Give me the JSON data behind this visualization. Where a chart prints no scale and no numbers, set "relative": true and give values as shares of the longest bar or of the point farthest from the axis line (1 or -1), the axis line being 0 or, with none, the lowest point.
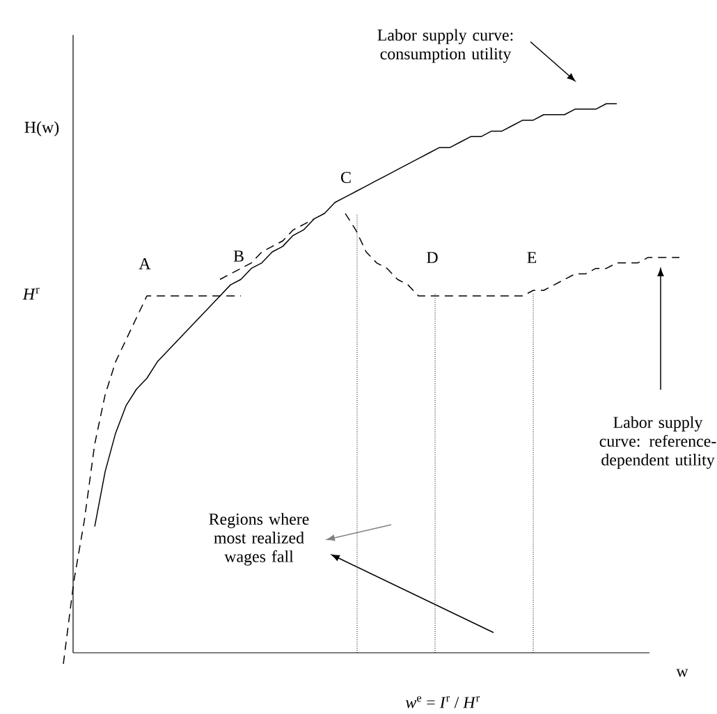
{
  "chart_data": {
    "type": "line",
    "relative": true,
    "xlabel": "w",
    "ylabel": "H(w)",
    "categories": [
      null,
      null,
      null,
      null,
      null,
      null,
      null,
      null,
      null,
      null,
      null,
      null,
      null,
      null,
      null,
      null,
      null,
      null,
      null,
      null,
      null,
      null,
      null,
      null,
      null,
      null,
      null,
      null,
      null,
      null,
      null,
      null,
      null,
      null,
      null,
      null,
      null,
      null,
      null,
      null,
      null,
      null,
      null,
      null,
      null,
      null,
      null,
      null,
      null,
      null,
      null,
      null,
      null,
      null,
      null,
      null,
      null,
      null,
      null,
      null
    ],
    "series": [
      {
        "color": "#000000",
        "line_style": "solid",
        "values": [
          null,
          null,
          null,
          0.23,
          0.33,
          0.4,
          0.45,
          0.48,
          0.5,
          0.53,
          0.55,
          0.57,
          0.59,
          0.61,
          0.63,
          0.65,
          0.67,
          0.68,
          0.7,
          0.71,
          0.73,
          0.74,
          0.76,
          0.77,
          0.79,
          0.8,
          0.82,
          0.83,
          0.84,
          0.85,
          0.86,
          0.87,
          0.88,
          0.89,
          0.9,
          0.91,
          0.92,
          0.92,
          0.93,
          0.94,
          0.94,
          0.95,
          0.95,
          0.96,
          0.97,
          0.97,
          0.98,
          0.98,
          0.98,
          0.99,
          0.99,
          0.99,
          1.0,
          1,
          null,
          null,
          null,
          null,
          null,
          null
        ]
      },
      {
        "color": "#000000",
        "line_style": "dashed",
        "values": [
          -0.02,
          0.13,
          0.24,
          0.38,
          0.47,
          0.53,
          0.57,
          0.61,
          0.65,
          0.65,
          0.65,
          0.65,
          0.65,
          0.65,
          0.65,
          0.65,
          0.65,
          0.65,
          null,
          null,
          null,
          null,
          null,
          null,
          null,
          null,
          null,
          null,
          null,
          null,
          null,
          null,
          null,
          null,
          null,
          null,
          null,
          null,
          null,
          null,
          null,
          null,
          null,
          null,
          null,
          null,
          null,
          null,
          null,
          null,
          null,
          null,
          null,
          null,
          null,
          null,
          null,
          null,
          null,
          null
        ]
      },
      {
        "color": "#000000",
        "line_style": "dashed",
        "values": [
          null,
          null,
          null,
          null,
          null,
          null,
          null,
          null,
          null,
          null,
          null,
          null,
          null,
          null,
          null,
          0.68,
          0.69,
          0.7,
          0.71,
          0.73,
          0.74,
          0.75,
          0.77,
          0.78,
          0.79,
          null,
          null,
          null,
          null,
          null,
          null,
          null,
          null,
          null,
          null,
          null,
          null,
          null,
          null,
          null,
          null,
          null,
          null,
          null,
          null,
          null,
          null,
          null,
          null,
          null,
          null,
          null,
          null,
          null,
          null,
          null,
          null,
          null,
          null,
          null
        ]
      },
      {
        "color": "#000000",
        "line_style": "dashed",
        "values": [
          null,
          null,
          null,
          null,
          null,
          null,
          null,
          null,
          null,
          null,
          null,
          null,
          null,
          null,
          null,
          null,
          null,
          null,
          null,
          null,
          null,
          null,
          null,
          null,
          null,
          null,
          null,
          0.8,
          0.77,
          0.73,
          0.71,
          0.7,
          0.68,
          0.67,
          0.65,
          0.65,
          0.65,
          0.65,
          0.65,
          0.65,
          0.65,
          0.65,
          0.65,
          0.65,
          0.65,
          0.66,
          0.66,
          0.67,
          0.68,
          0.69,
          0.69,
          0.7,
          0.7,
          0.71,
          0.71,
          0.71,
          0.72,
          0.72,
          0.72,
          0.72
        ]
      }
    ],
    "annotations": [
      "Labor supply curve: consumption utility",
      "Labor supply curve: reference-dependent utility",
      "Regions where most realized wages fall",
      "A",
      "B",
      "C",
      "D",
      "E",
      "*H*$^{r}$",
      "*w*$^{e}$ = *I*$^{r}$ / *H*$^{r}$"
    ]
  }
}
